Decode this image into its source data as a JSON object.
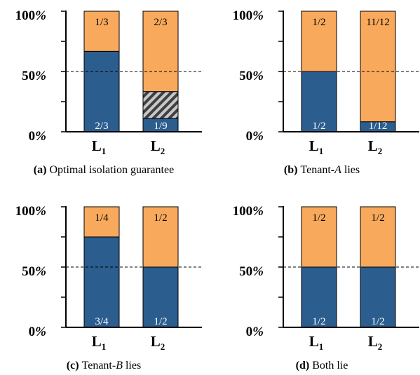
{
  "colors": {
    "tenant_a": "#2b5d8e",
    "tenant_b": "#f8a95c",
    "hatch_bg": "#c8c8c8",
    "hatch_line": "#404040",
    "axis": "#000000"
  },
  "chart_data": [
    {
      "type": "bar",
      "stacked": true,
      "categories": [
        {
          "base": "L",
          "sub": "1"
        },
        {
          "base": "L",
          "sub": "2"
        }
      ],
      "yticks": [
        "0%",
        "50%",
        "100%"
      ],
      "ylim": [
        0,
        1
      ],
      "reference_line": 0.5,
      "caption": {
        "letter": "(a)",
        "text": "Optimal isolation guarantee"
      },
      "bars": [
        {
          "segments": [
            {
              "kind": "tenant_a",
              "value": 0.6667,
              "label": "2/3",
              "label_pos": "bottom"
            },
            {
              "kind": "tenant_b",
              "value": 0.3333,
              "label": "1/3",
              "label_pos": "top"
            }
          ]
        },
        {
          "segments": [
            {
              "kind": "tenant_a",
              "value": 0.1111,
              "label": "1/9",
              "label_pos": "bottom"
            },
            {
              "kind": "hatch",
              "value": 0.2222,
              "label": "",
              "label_pos": "none"
            },
            {
              "kind": "tenant_b",
              "value": 0.6667,
              "label": "2/3",
              "label_pos": "top"
            }
          ]
        }
      ]
    },
    {
      "type": "bar",
      "stacked": true,
      "categories": [
        {
          "base": "L",
          "sub": "1"
        },
        {
          "base": "L",
          "sub": "2"
        }
      ],
      "yticks": [
        "0%",
        "50%",
        "100%"
      ],
      "ylim": [
        0,
        1
      ],
      "reference_line": 0.5,
      "caption": {
        "letter": "(b)",
        "pre": "Tenant-",
        "var": "A",
        "post": " lies"
      },
      "bars": [
        {
          "segments": [
            {
              "kind": "tenant_a",
              "value": 0.5,
              "label": "1/2",
              "label_pos": "bottom"
            },
            {
              "kind": "tenant_b",
              "value": 0.5,
              "label": "1/2",
              "label_pos": "top"
            }
          ]
        },
        {
          "segments": [
            {
              "kind": "tenant_a",
              "value": 0.0833,
              "label": "1/12",
              "label_pos": "bottom"
            },
            {
              "kind": "tenant_b",
              "value": 0.9167,
              "label": "11/12",
              "label_pos": "top"
            }
          ]
        }
      ]
    },
    {
      "type": "bar",
      "stacked": true,
      "categories": [
        {
          "base": "L",
          "sub": "1"
        },
        {
          "base": "L",
          "sub": "2"
        }
      ],
      "yticks": [
        "0%",
        "50%",
        "100%"
      ],
      "ylim": [
        0,
        1
      ],
      "reference_line": 0.5,
      "caption": {
        "letter": "(c)",
        "pre": "Tenant-",
        "var": "B",
        "post": " lies"
      },
      "bars": [
        {
          "segments": [
            {
              "kind": "tenant_a",
              "value": 0.75,
              "label": "3/4",
              "label_pos": "bottom"
            },
            {
              "kind": "tenant_b",
              "value": 0.25,
              "label": "1/4",
              "label_pos": "top"
            }
          ]
        },
        {
          "segments": [
            {
              "kind": "tenant_a",
              "value": 0.5,
              "label": "1/2",
              "label_pos": "bottom"
            },
            {
              "kind": "tenant_b",
              "value": 0.5,
              "label": "1/2",
              "label_pos": "top"
            }
          ]
        }
      ]
    },
    {
      "type": "bar",
      "stacked": true,
      "categories": [
        {
          "base": "L",
          "sub": "1"
        },
        {
          "base": "L",
          "sub": "2"
        }
      ],
      "yticks": [
        "0%",
        "50%",
        "100%"
      ],
      "ylim": [
        0,
        1
      ],
      "reference_line": 0.5,
      "caption": {
        "letter": "(d)",
        "text": "Both lie"
      },
      "bars": [
        {
          "segments": [
            {
              "kind": "tenant_a",
              "value": 0.5,
              "label": "1/2",
              "label_pos": "bottom"
            },
            {
              "kind": "tenant_b",
              "value": 0.5,
              "label": "1/2",
              "label_pos": "top"
            }
          ]
        },
        {
          "segments": [
            {
              "kind": "tenant_a",
              "value": 0.5,
              "label": "1/2",
              "label_pos": "bottom"
            },
            {
              "kind": "tenant_b",
              "value": 0.5,
              "label": "1/2",
              "label_pos": "top"
            }
          ]
        }
      ]
    }
  ]
}
